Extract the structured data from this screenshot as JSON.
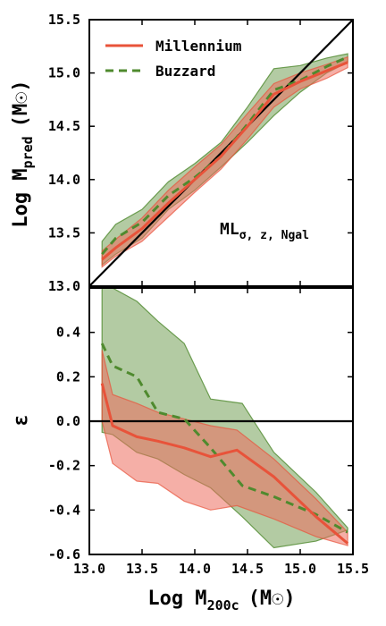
{
  "chart_data": [
    {
      "type": "line",
      "panel": "top",
      "xlim": [
        13.0,
        15.5
      ],
      "ylim": [
        13.0,
        15.5
      ],
      "yticks": [
        "13.0",
        "13.5",
        "14.0",
        "14.5",
        "15.0",
        "15.5"
      ],
      "ylabel_main": "Log M",
      "ylabel_sub": "pred",
      "ylabel_unit": "(M☉)",
      "annotation_main": "ML",
      "annotation_sub": "σ, z, Ngal",
      "legend": {
        "position": "top-left",
        "entries": [
          "Millennium",
          "Buzzard"
        ]
      },
      "identity_line": [
        [
          13.0,
          13.0
        ],
        [
          15.5,
          15.5
        ]
      ],
      "series": [
        {
          "name": "Millennium",
          "color": "#e8533a",
          "style": "solid",
          "x": [
            13.12,
            13.25,
            13.5,
            13.75,
            14.0,
            14.25,
            14.5,
            14.75,
            15.0,
            15.25,
            15.45
          ],
          "y": [
            13.25,
            13.36,
            13.54,
            13.78,
            14.0,
            14.22,
            14.5,
            14.8,
            14.92,
            15.02,
            15.1
          ],
          "band_lo": [
            13.18,
            13.28,
            13.42,
            13.65,
            13.88,
            14.1,
            14.38,
            14.68,
            14.85,
            14.95,
            15.05
          ],
          "band_hi": [
            13.33,
            13.44,
            13.64,
            13.9,
            14.12,
            14.33,
            14.62,
            14.9,
            15.0,
            15.08,
            15.15
          ]
        },
        {
          "name": "Buzzard",
          "color": "#4f8a2e",
          "style": "dashed",
          "x": [
            13.12,
            13.25,
            13.5,
            13.75,
            14.0,
            14.25,
            14.5,
            14.75,
            15.0,
            15.25,
            15.45
          ],
          "y": [
            13.3,
            13.45,
            13.6,
            13.85,
            14.02,
            14.22,
            14.52,
            14.84,
            14.93,
            15.06,
            15.15
          ],
          "band_lo": [
            13.2,
            13.3,
            13.45,
            13.72,
            13.9,
            14.12,
            14.35,
            14.6,
            14.82,
            15.0,
            15.1
          ],
          "band_hi": [
            13.42,
            13.58,
            13.72,
            13.98,
            14.15,
            14.35,
            14.68,
            15.04,
            15.07,
            15.14,
            15.18
          ]
        }
      ]
    },
    {
      "type": "line",
      "panel": "bottom",
      "xlim": [
        13.0,
        15.5
      ],
      "ylim": [
        -0.6,
        0.6
      ],
      "xticks": [
        "13.0",
        "13.5",
        "14.0",
        "14.5",
        "15.0",
        "15.5"
      ],
      "yticks": [
        "-0.6",
        "-0.4",
        "-0.2",
        "0.0",
        "0.2",
        "0.4"
      ],
      "xlabel_main": "Log M",
      "xlabel_sub": "200c",
      "xlabel_unit": "(M☉)",
      "ylabel": "ε",
      "zero_line": true,
      "series": [
        {
          "name": "Millennium",
          "color": "#e8533a",
          "style": "solid",
          "x": [
            13.12,
            13.22,
            13.45,
            13.65,
            13.9,
            14.15,
            14.4,
            14.75,
            15.15,
            15.45
          ],
          "y": [
            0.17,
            -0.02,
            -0.07,
            -0.09,
            -0.12,
            -0.16,
            -0.13,
            -0.25,
            -0.43,
            -0.55
          ],
          "band_lo": [
            0.0,
            -0.19,
            -0.27,
            -0.28,
            -0.36,
            -0.4,
            -0.38,
            -0.44,
            -0.52,
            -0.56
          ],
          "band_hi": [
            0.32,
            0.12,
            0.08,
            0.04,
            0.01,
            -0.02,
            -0.04,
            -0.17,
            -0.35,
            -0.5
          ]
        },
        {
          "name": "Buzzard",
          "color": "#4f8a2e",
          "style": "dashed",
          "x": [
            13.12,
            13.22,
            13.45,
            13.65,
            13.9,
            14.15,
            14.45,
            14.75,
            15.15,
            15.45
          ],
          "y": [
            0.35,
            0.25,
            0.2,
            0.04,
            0.01,
            -0.12,
            -0.29,
            -0.34,
            -0.42,
            -0.5
          ],
          "band_lo": [
            -0.05,
            -0.06,
            -0.14,
            -0.17,
            -0.24,
            -0.3,
            -0.43,
            -0.57,
            -0.54,
            -0.49
          ],
          "band_hi": [
            0.6,
            0.6,
            0.54,
            0.45,
            0.35,
            0.1,
            0.08,
            -0.14,
            -0.32,
            -0.48
          ]
        }
      ]
    }
  ]
}
